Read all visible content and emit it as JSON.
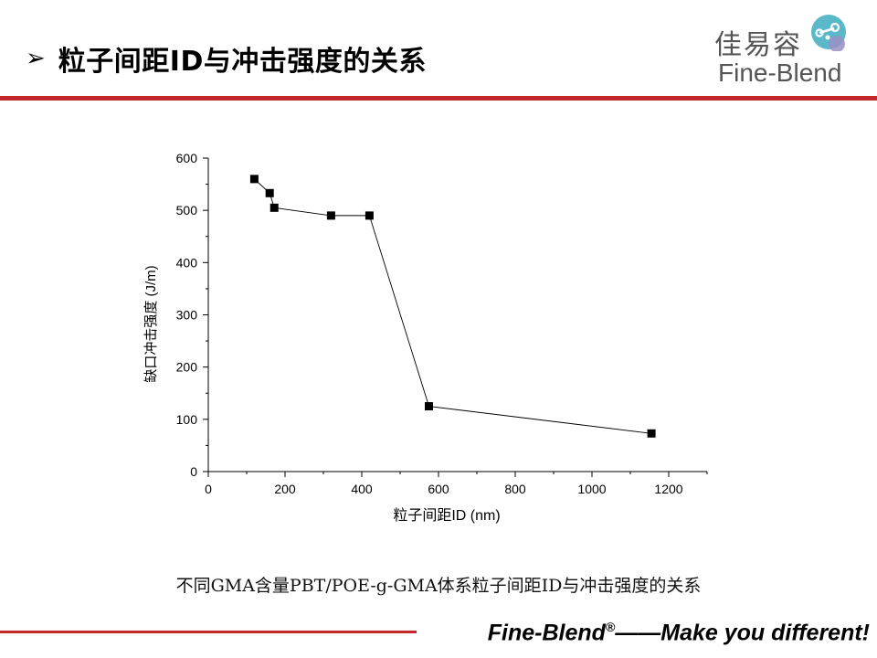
{
  "header": {
    "bullet": "➢",
    "title": "粒子间距ID与冲击强度的关系"
  },
  "logo": {
    "cn": "佳易容",
    "en": "Fine-Blend",
    "icon": "molecule-logo-icon",
    "colors": {
      "teal": "#5bb8c9",
      "purple": "#9a8fc6"
    }
  },
  "chart_data": {
    "type": "line",
    "title": "",
    "xlabel": "粒子间距ID (nm)",
    "ylabel": "缺口冲击强度 (J/m)",
    "xlim": [
      0,
      1300
    ],
    "ylim": [
      0,
      600
    ],
    "xticks": [
      0,
      200,
      400,
      600,
      800,
      1000,
      1200
    ],
    "yticks": [
      0,
      100,
      200,
      300,
      400,
      500,
      600
    ],
    "marker": "square",
    "series": [
      {
        "x": [
          120,
          160,
          172,
          320,
          420,
          575,
          1155
        ],
        "y": [
          560,
          533,
          505,
          490,
          490,
          125,
          73
        ]
      }
    ]
  },
  "caption": "不同GMA含量PBT/POE-g-GMA体系粒子间距ID与冲击强度的关系",
  "footer": {
    "brand": "Fine-Blend",
    "reg": "®",
    "tagline": "——Make you different!"
  },
  "colors": {
    "accent": "#c1272d"
  }
}
